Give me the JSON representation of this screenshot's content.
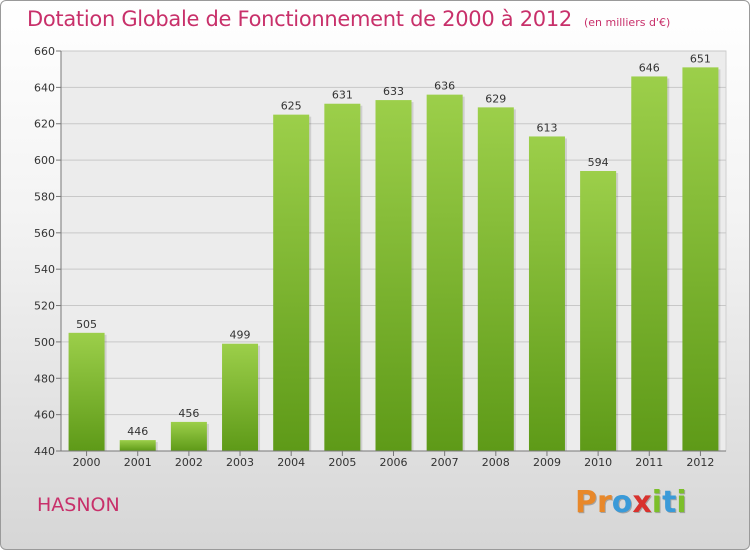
{
  "header": {
    "title": "Dotation Globale de Fonctionnement de 2000 à 2012",
    "unit": "(en milliers d'€)"
  },
  "footer": {
    "city": "HASNON",
    "logo_letters": [
      {
        "ch": "P",
        "color": "#e8882a"
      },
      {
        "ch": "r",
        "color": "#e8882a"
      },
      {
        "ch": "o",
        "color": "#3a9ad8"
      },
      {
        "ch": "x",
        "color": "#d8322e"
      },
      {
        "ch": "i",
        "color": "#7cbf2a"
      },
      {
        "ch": "t",
        "color": "#3a9ad8"
      },
      {
        "ch": "i",
        "color": "#7cbf2a"
      }
    ]
  },
  "chart_data": {
    "type": "bar",
    "categories": [
      "2000",
      "2001",
      "2002",
      "2003",
      "2004",
      "2005",
      "2006",
      "2007",
      "2008",
      "2009",
      "2010",
      "2011",
      "2012"
    ],
    "values": [
      505,
      446,
      456,
      499,
      625,
      631,
      633,
      636,
      629,
      613,
      594,
      646,
      651
    ],
    "ylim": [
      440,
      660
    ],
    "yticks": [
      440,
      460,
      480,
      500,
      520,
      540,
      560,
      580,
      600,
      620,
      640,
      660
    ],
    "grid": true,
    "bar_color_top": "#9ccf4a",
    "bar_color_bottom": "#5e9a18",
    "title_color": "#c8306a"
  }
}
